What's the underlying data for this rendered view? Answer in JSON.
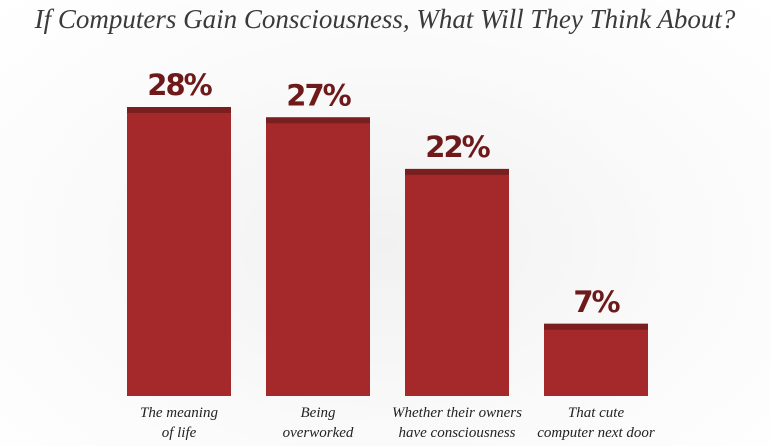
{
  "chart_data": {
    "type": "bar",
    "title": "If Computers Gain Consciousness, What Will They Think About?",
    "categories": [
      "The meaning\nof life",
      "Being\noverworked",
      "Whether their owners\nhave consciousness",
      "That cute\ncomputer next door"
    ],
    "values": [
      28,
      27,
      22,
      7
    ],
    "value_labels": [
      "28%",
      "27%",
      "22%",
      "7%"
    ],
    "color": "#a5292a"
  }
}
